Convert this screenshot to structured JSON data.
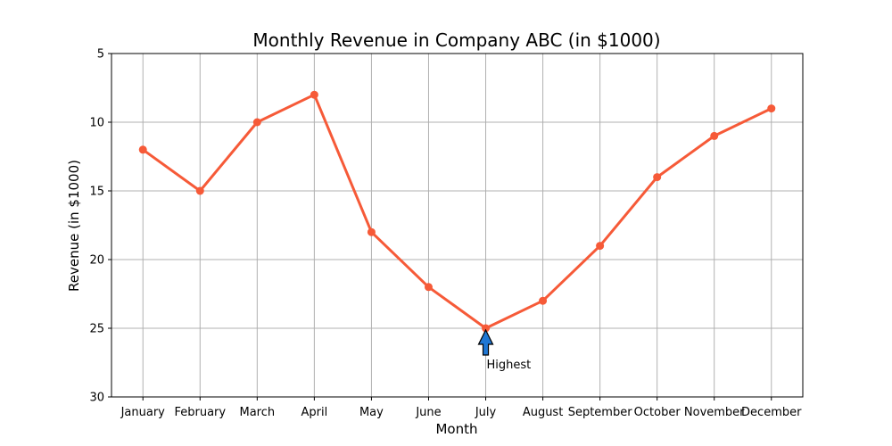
{
  "chart_data": {
    "type": "line",
    "title": "Monthly Revenue in Company ABC (in $1000)",
    "xlabel": "Month",
    "ylabel": "Revenue (in $1000)",
    "categories": [
      "January",
      "February",
      "March",
      "April",
      "May",
      "June",
      "July",
      "August",
      "September",
      "October",
      "November",
      "December"
    ],
    "series": [
      {
        "values": [
          12,
          15,
          10,
          8,
          18,
          22,
          25,
          23,
          19,
          14,
          11,
          9
        ]
      }
    ],
    "ylim": [
      30,
      5
    ],
    "y_inverted": true,
    "yticks": [
      5,
      10,
      15,
      20,
      25,
      30
    ],
    "grid": true,
    "legend": "none",
    "annotations": [
      {
        "text": "Highest",
        "category": "July",
        "value": 25,
        "arrow_color": "#1f77d4"
      }
    ],
    "colors": {
      "line": "#f65a38",
      "grid": "#b0b0b0",
      "axis": "#000000"
    }
  }
}
